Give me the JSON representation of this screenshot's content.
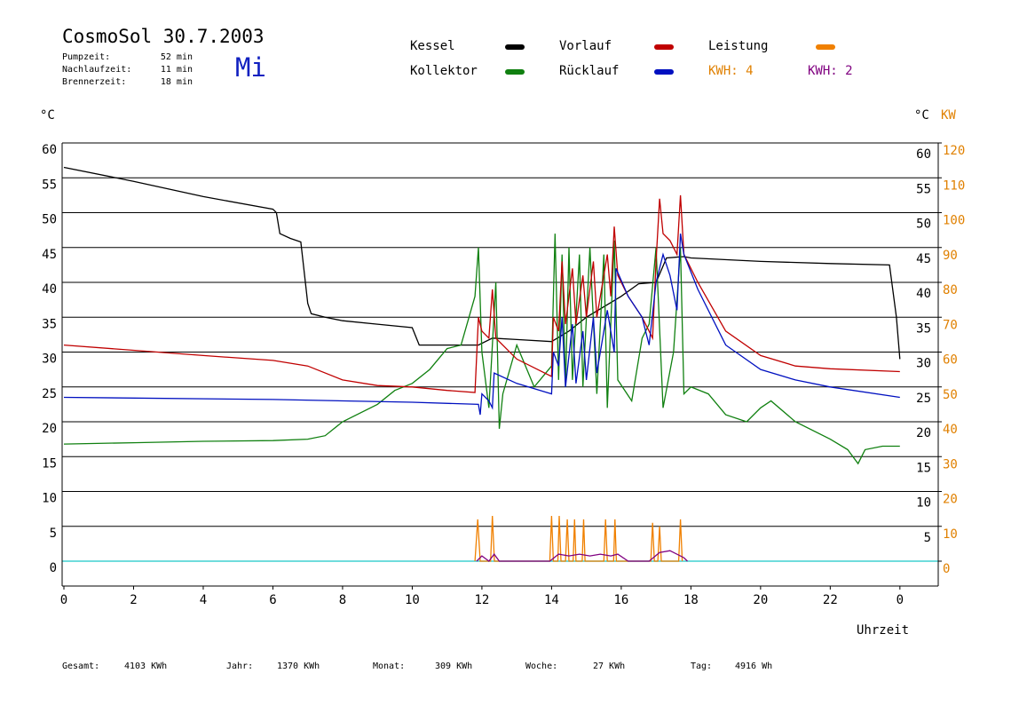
{
  "header": {
    "title": "CosmoSol 30.7.2003",
    "weekday": "Mi",
    "run_times": [
      {
        "label": "Pumpzeit:",
        "value": "52 min"
      },
      {
        "label": "Nachlaufzeit:",
        "value": "11 min"
      },
      {
        "label": "Brennerzeit:",
        "value": "18 min"
      }
    ]
  },
  "totals": [
    {
      "label": "Gesamt:",
      "value": "4103 KWh"
    },
    {
      "label": "Jahr:",
      "value": "1370 KWh"
    },
    {
      "label": "Monat:",
      "value": "309 KWh"
    },
    {
      "label": "Woche:",
      "value": "27 KWh"
    },
    {
      "label": "Tag:",
      "value": "4916 Wh"
    }
  ],
  "chart_data": {
    "type": "line",
    "x_label": "Uhrzeit",
    "y_unit": "°C",
    "y2_unit": "KW",
    "annotations": [
      {
        "label": "KWH: 4",
        "color": "#e08000"
      }
    ],
    "xlim": [
      0,
      25.1
    ],
    "xticks": [
      0,
      2,
      4,
      6,
      8,
      10,
      12,
      14,
      16,
      18,
      20,
      22,
      {
        "value": 24,
        "label": "0"
      }
    ],
    "ylim": [
      -3.6,
      60
    ],
    "yticks": [
      0,
      5,
      10,
      15,
      20,
      25,
      30,
      35,
      40,
      45,
      50,
      55,
      60
    ],
    "y2lim": [
      -7.2,
      120
    ],
    "y2ticks": [
      0,
      10,
      20,
      30,
      40,
      50,
      60,
      70,
      80,
      90,
      100,
      110,
      120
    ],
    "grid": true,
    "zero_line_color": "#40d0d0",
    "series": [
      {
        "name": "Kessel",
        "color": "#000000",
        "x": [
          0,
          2,
          4,
          6,
          6.1,
          6.2,
          6.5,
          6.8,
          7.0,
          7.1,
          7.5,
          8,
          9,
          10,
          10.2,
          11,
          11.9,
          12.3,
          13,
          14,
          14.5,
          15,
          16,
          16.5,
          17,
          17.3,
          17.8,
          18,
          20,
          22,
          23.7,
          23.9,
          24
        ],
        "values": [
          56.5,
          54.5,
          52.3,
          50.5,
          50,
          47,
          46.3,
          45.8,
          37,
          35.5,
          35,
          34.5,
          34,
          33.5,
          31,
          31,
          31,
          32,
          31.8,
          31.5,
          33,
          35,
          38,
          39.8,
          40,
          43.5,
          43.7,
          43.5,
          43,
          42.7,
          42.5,
          35,
          29
        ]
      },
      {
        "name": "Kollektor",
        "color": "#108010",
        "x": [
          0,
          2,
          4,
          6,
          7,
          7.5,
          8,
          9,
          9.5,
          10,
          10.5,
          11,
          11.4,
          11.8,
          11.9,
          12.0,
          12.2,
          12.4,
          12.5,
          12.6,
          13,
          13.5,
          14,
          14.1,
          14.2,
          14.3,
          14.4,
          14.5,
          14.6,
          14.8,
          14.9,
          15.1,
          15.3,
          15.5,
          15.6,
          15.8,
          15.9,
          16.3,
          16.6,
          16.8,
          17.0,
          17.2,
          17.5,
          17.7,
          17.8,
          18,
          18.5,
          19,
          19.6,
          20,
          20.3,
          21,
          22,
          22.5,
          22.8,
          23,
          23.5,
          24
        ],
        "values": [
          16.8,
          17,
          17.2,
          17.3,
          17.5,
          18,
          20,
          22.5,
          24.5,
          25.5,
          27.5,
          30.5,
          31,
          38,
          45,
          30,
          22,
          40,
          19,
          24,
          31,
          25,
          28,
          47,
          26,
          44,
          25,
          45,
          26,
          44,
          25,
          45,
          24,
          44,
          22,
          46,
          26,
          23,
          32,
          34,
          45,
          22,
          30,
          45,
          24,
          25,
          24,
          21,
          20,
          22,
          23,
          20,
          17.5,
          16,
          14,
          16,
          16.5,
          16.5
        ]
      },
      {
        "name": "Vorlauf",
        "color": "#c00000",
        "x": [
          0,
          4,
          6,
          7,
          8,
          9,
          10,
          11,
          11.8,
          11.9,
          12,
          12.2,
          12.3,
          12.4,
          13,
          14,
          14.05,
          14.2,
          14.3,
          14.4,
          14.6,
          14.7,
          14.9,
          15.0,
          15.2,
          15.3,
          15.6,
          15.7,
          15.8,
          15.9,
          16.2,
          16.6,
          16.9,
          17.0,
          17.1,
          17.2,
          17.4,
          17.6,
          17.7,
          17.8,
          18.2,
          19,
          20,
          21,
          22,
          24
        ],
        "values": [
          31,
          29.5,
          28.8,
          28,
          26,
          25.2,
          25,
          24.5,
          24.2,
          35,
          33,
          32,
          39,
          32,
          29,
          26.5,
          35,
          33,
          43,
          34,
          42,
          34,
          41,
          35,
          43,
          35,
          44,
          38,
          48,
          41,
          38,
          35,
          32,
          43,
          52,
          47,
          46,
          44,
          52.5,
          44,
          40,
          33,
          29.5,
          28,
          27.6,
          27.2
        ]
      },
      {
        "name": "Rücklauf",
        "color": "#0010c0",
        "x": [
          0,
          6,
          10,
          11.9,
          11.95,
          12,
          12.2,
          12.3,
          12.35,
          13,
          14,
          14.05,
          14.2,
          14.3,
          14.4,
          14.6,
          14.7,
          14.9,
          15.0,
          15.2,
          15.3,
          15.6,
          15.8,
          15.85,
          16.2,
          16.6,
          16.8,
          17.0,
          17.2,
          17.4,
          17.6,
          17.7,
          17.8,
          18.2,
          19,
          20,
          21,
          22,
          24
        ],
        "values": [
          23.5,
          23.2,
          22.8,
          22.5,
          21,
          24,
          23,
          22,
          27,
          25.5,
          24,
          30,
          28,
          35,
          25,
          34,
          25.5,
          33,
          26,
          35,
          27,
          36,
          30,
          42,
          38,
          35,
          31,
          40,
          44,
          41,
          36,
          47,
          44,
          39,
          31,
          27.5,
          26,
          25,
          23.5
        ]
      },
      {
        "name": "Leistung",
        "color": "#f08000",
        "axis": "y2",
        "x": [
          11.8,
          11.88,
          11.95,
          12.25,
          12.3,
          12.36,
          13.95,
          14.0,
          14.05,
          14.18,
          14.22,
          14.27,
          14.4,
          14.45,
          14.5,
          14.62,
          14.66,
          14.7,
          14.88,
          14.92,
          14.96,
          15.5,
          15.55,
          15.6,
          15.78,
          15.82,
          15.86,
          16.85,
          16.9,
          16.95,
          17.05,
          17.1,
          17.15,
          17.65,
          17.7,
          17.75
        ],
        "values": [
          0,
          12,
          0,
          0,
          13,
          0,
          0,
          13,
          0,
          0,
          13,
          0,
          0,
          12,
          0,
          0,
          12,
          0,
          0,
          12,
          0,
          0,
          12,
          0,
          0,
          12,
          0,
          0,
          11,
          0,
          0,
          10,
          0,
          0,
          12,
          0
        ]
      },
      {
        "name": "KWH: 2",
        "color": "#800080",
        "axis": "y2",
        "x": [
          11.85,
          12.0,
          12.2,
          12.35,
          12.5,
          13.95,
          14.2,
          14.5,
          14.8,
          15.1,
          15.4,
          15.7,
          15.9,
          16.2,
          16.8,
          17.1,
          17.4,
          17.8,
          17.9
        ],
        "values": [
          0,
          1.5,
          0,
          2,
          0,
          0,
          2,
          1.5,
          2,
          1.5,
          2,
          1.5,
          2,
          0,
          0,
          2.5,
          3,
          1,
          0
        ]
      }
    ]
  }
}
